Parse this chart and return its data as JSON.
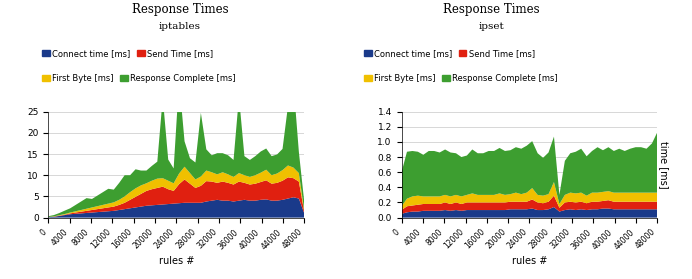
{
  "title": "Response Times",
  "subtitle_left": "iptables",
  "subtitle_right": "ipset",
  "xlabel": "rules #",
  "ylabel": "time [ms]",
  "legend_labels": [
    "Connect time [ms]",
    "Send Time [ms]",
    "First Byte [ms]",
    "Response Complete [ms]"
  ],
  "colors": [
    "#1a3a8a",
    "#e02010",
    "#f0c000",
    "#3d9e30"
  ],
  "x_ticks": [
    0,
    4000,
    8000,
    12000,
    16000,
    20000,
    24000,
    28000,
    32000,
    36000,
    40000,
    44000,
    48000
  ],
  "iptables": {
    "ylim": [
      0,
      25
    ],
    "yticks": [
      0,
      5,
      10,
      15,
      20,
      25
    ],
    "connect": [
      0.1,
      0.2,
      0.4,
      0.6,
      0.8,
      0.9,
      1.0,
      1.1,
      1.2,
      1.3,
      1.4,
      1.5,
      1.6,
      1.8,
      2.0,
      2.2,
      2.4,
      2.6,
      2.8,
      2.9,
      3.0,
      3.1,
      3.2,
      3.3,
      3.4,
      3.5,
      3.5,
      3.5,
      3.5,
      3.8,
      4.0,
      4.2,
      4.0,
      4.0,
      3.8,
      4.0,
      4.2,
      4.0,
      4.0,
      4.2,
      4.3,
      4.0,
      4.0,
      4.2,
      4.5,
      4.8,
      4.5,
      1.0
    ],
    "send": [
      0.02,
      0.05,
      0.08,
      0.1,
      0.2,
      0.3,
      0.4,
      0.5,
      0.6,
      0.7,
      0.8,
      0.9,
      1.0,
      1.2,
      1.5,
      2.0,
      2.5,
      3.0,
      3.5,
      3.8,
      4.0,
      4.2,
      3.5,
      3.0,
      4.5,
      5.5,
      4.5,
      3.5,
      4.0,
      4.8,
      4.5,
      4.0,
      4.5,
      4.2,
      4.0,
      4.5,
      4.0,
      3.8,
      4.0,
      4.2,
      4.5,
      4.0,
      4.2,
      4.5,
      5.0,
      4.5,
      4.0,
      0.3
    ],
    "firstbyte": [
      0.02,
      0.05,
      0.1,
      0.15,
      0.2,
      0.3,
      0.4,
      0.5,
      0.6,
      0.7,
      0.8,
      0.9,
      1.0,
      1.2,
      1.5,
      1.8,
      2.0,
      2.0,
      1.8,
      2.0,
      2.2,
      2.0,
      2.0,
      1.8,
      2.5,
      3.0,
      2.5,
      2.0,
      2.2,
      2.5,
      2.2,
      2.0,
      2.2,
      2.0,
      1.8,
      2.0,
      1.8,
      1.8,
      2.0,
      2.2,
      2.5,
      2.0,
      2.2,
      2.5,
      2.8,
      2.5,
      2.0,
      0.3
    ],
    "response": [
      0.2,
      0.3,
      0.5,
      0.8,
      1.0,
      1.5,
      2.0,
      2.5,
      2.0,
      2.5,
      3.0,
      3.5,
      3.0,
      4.0,
      5.0,
      4.0,
      4.5,
      3.5,
      3.0,
      3.5,
      4.0,
      19.0,
      5.0,
      3.5,
      22.0,
      6.0,
      3.5,
      4.0,
      15.0,
      5.0,
      4.0,
      5.0,
      4.5,
      4.5,
      4.0,
      18.0,
      4.5,
      4.0,
      4.5,
      5.0,
      5.0,
      4.5,
      4.5,
      5.0,
      14.0,
      20.0,
      5.0,
      2.0
    ]
  },
  "ipset": {
    "ylim": [
      0,
      1.4
    ],
    "yticks": [
      0,
      0.2,
      0.4,
      0.6,
      0.8,
      1.0,
      1.2,
      1.4
    ],
    "connect": [
      0.05,
      0.07,
      0.08,
      0.08,
      0.09,
      0.09,
      0.09,
      0.09,
      0.1,
      0.09,
      0.1,
      0.09,
      0.1,
      0.1,
      0.1,
      0.1,
      0.1,
      0.1,
      0.1,
      0.1,
      0.11,
      0.11,
      0.11,
      0.11,
      0.12,
      0.1,
      0.1,
      0.11,
      0.14,
      0.08,
      0.1,
      0.11,
      0.1,
      0.11,
      0.1,
      0.11,
      0.11,
      0.12,
      0.12,
      0.11,
      0.11,
      0.11,
      0.11,
      0.11,
      0.11,
      0.11,
      0.11,
      0.11
    ],
    "send": [
      0.05,
      0.08,
      0.08,
      0.09,
      0.09,
      0.09,
      0.09,
      0.09,
      0.1,
      0.09,
      0.1,
      0.09,
      0.1,
      0.1,
      0.1,
      0.1,
      0.1,
      0.1,
      0.1,
      0.1,
      0.1,
      0.1,
      0.1,
      0.1,
      0.12,
      0.1,
      0.09,
      0.1,
      0.15,
      0.05,
      0.1,
      0.1,
      0.1,
      0.1,
      0.09,
      0.1,
      0.1,
      0.1,
      0.11,
      0.1,
      0.1,
      0.1,
      0.1,
      0.1,
      0.1,
      0.1,
      0.1,
      0.1
    ],
    "firstbyte": [
      0.05,
      0.1,
      0.12,
      0.12,
      0.1,
      0.1,
      0.1,
      0.1,
      0.1,
      0.1,
      0.1,
      0.1,
      0.1,
      0.12,
      0.1,
      0.1,
      0.1,
      0.1,
      0.12,
      0.1,
      0.1,
      0.12,
      0.1,
      0.12,
      0.15,
      0.1,
      0.1,
      0.1,
      0.18,
      0.05,
      0.1,
      0.12,
      0.12,
      0.12,
      0.1,
      0.12,
      0.12,
      0.12,
      0.12,
      0.12,
      0.12,
      0.12,
      0.12,
      0.12,
      0.12,
      0.12,
      0.12,
      0.12
    ],
    "response": [
      0.45,
      0.62,
      0.6,
      0.58,
      0.55,
      0.6,
      0.6,
      0.58,
      0.6,
      0.58,
      0.55,
      0.52,
      0.52,
      0.58,
      0.55,
      0.55,
      0.58,
      0.58,
      0.6,
      0.58,
      0.58,
      0.6,
      0.6,
      0.62,
      0.62,
      0.55,
      0.5,
      0.55,
      0.6,
      0.12,
      0.45,
      0.52,
      0.55,
      0.58,
      0.52,
      0.55,
      0.6,
      0.55,
      0.58,
      0.55,
      0.58,
      0.55,
      0.58,
      0.6,
      0.6,
      0.58,
      0.65,
      0.8
    ]
  },
  "bg_color": "#ffffff",
  "plot_bg_color": "#ffffff",
  "grid_color": "#c8c8c8"
}
